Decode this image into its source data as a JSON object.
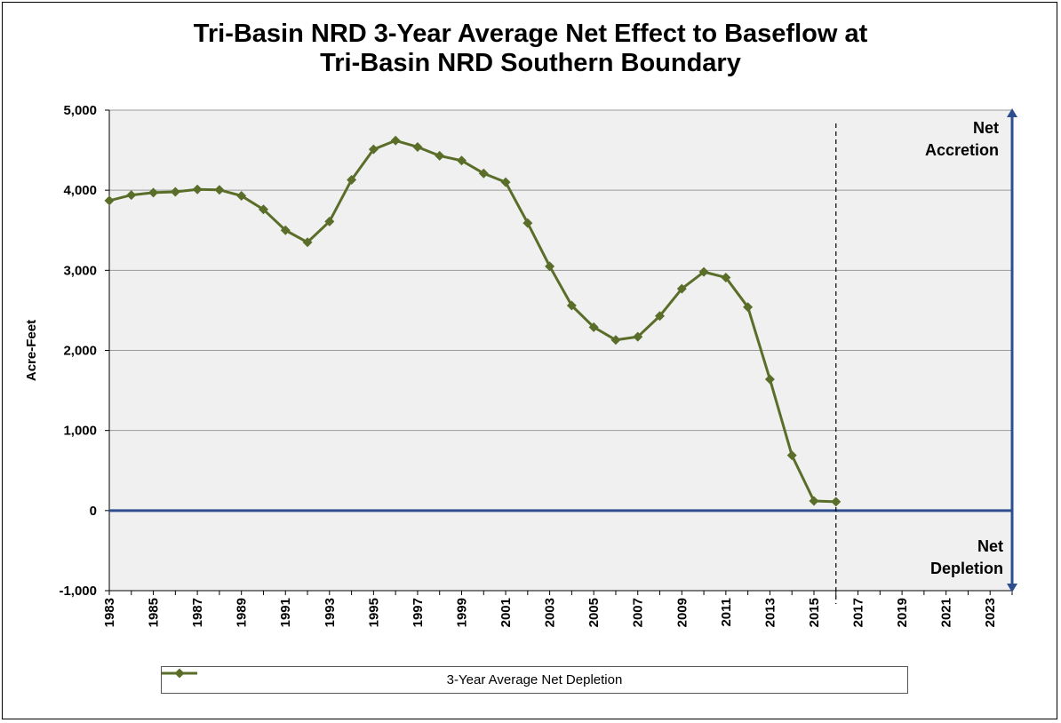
{
  "chart_data": {
    "type": "line",
    "title_line1": "Tri-Basin NRD 3-Year Average Net Effect to Baseflow at",
    "title_line2": "Tri-Basin NRD Southern Boundary",
    "xlabel": "",
    "ylabel": "Acre-Feet",
    "xlim": [
      1983,
      2024
    ],
    "ylim": [
      -1000,
      5000
    ],
    "x_ticks": [
      "1983",
      "1985",
      "1987",
      "1989",
      "1991",
      "1993",
      "1995",
      "1997",
      "1999",
      "2001",
      "2003",
      "2005",
      "2007",
      "2009",
      "2011",
      "2013",
      "2015",
      "2017",
      "2019",
      "2021",
      "2023"
    ],
    "y_ticks": [
      {
        "value": 5000,
        "label": "5,000"
      },
      {
        "value": 4000,
        "label": "4,000"
      },
      {
        "value": 3000,
        "label": "3,000"
      },
      {
        "value": 2000,
        "label": "2,000"
      },
      {
        "value": 1000,
        "label": "1,000"
      },
      {
        "value": 0,
        "label": "0"
      },
      {
        "value": -1000,
        "label": "-1,000"
      }
    ],
    "grid": true,
    "legend_position": "bottom",
    "series": [
      {
        "name": "3-Year Average Net Depletion",
        "color": "#5a6e2a",
        "marker": "diamond",
        "x": [
          1983,
          1984,
          1985,
          1986,
          1987,
          1988,
          1989,
          1990,
          1991,
          1992,
          1993,
          1994,
          1995,
          1996,
          1997,
          1998,
          1999,
          2000,
          2001,
          2002,
          2003,
          2004,
          2005,
          2006,
          2007,
          2008,
          2009,
          2010,
          2011,
          2012,
          2013,
          2014,
          2015,
          2016
        ],
        "y": [
          3870,
          3940,
          3970,
          3980,
          4010,
          4005,
          3930,
          3760,
          3500,
          3350,
          3610,
          4130,
          4510,
          4620,
          4540,
          4430,
          4370,
          4210,
          4100,
          3590,
          3050,
          2560,
          2290,
          2130,
          2170,
          2430,
          2770,
          2980,
          2910,
          2540,
          1640,
          690,
          120,
          110
        ]
      }
    ],
    "reference_lines": {
      "zero_line_value": 0,
      "zero_line_color": "#2e4f8f",
      "vertical_dashed_year": 2016,
      "axis_arrow_color": "#2e4f8f"
    },
    "annotations": {
      "top": [
        "Net",
        "Accretion"
      ],
      "bottom": [
        "Net",
        "Depletion"
      ]
    },
    "plot_background": "#f0f0f0"
  }
}
